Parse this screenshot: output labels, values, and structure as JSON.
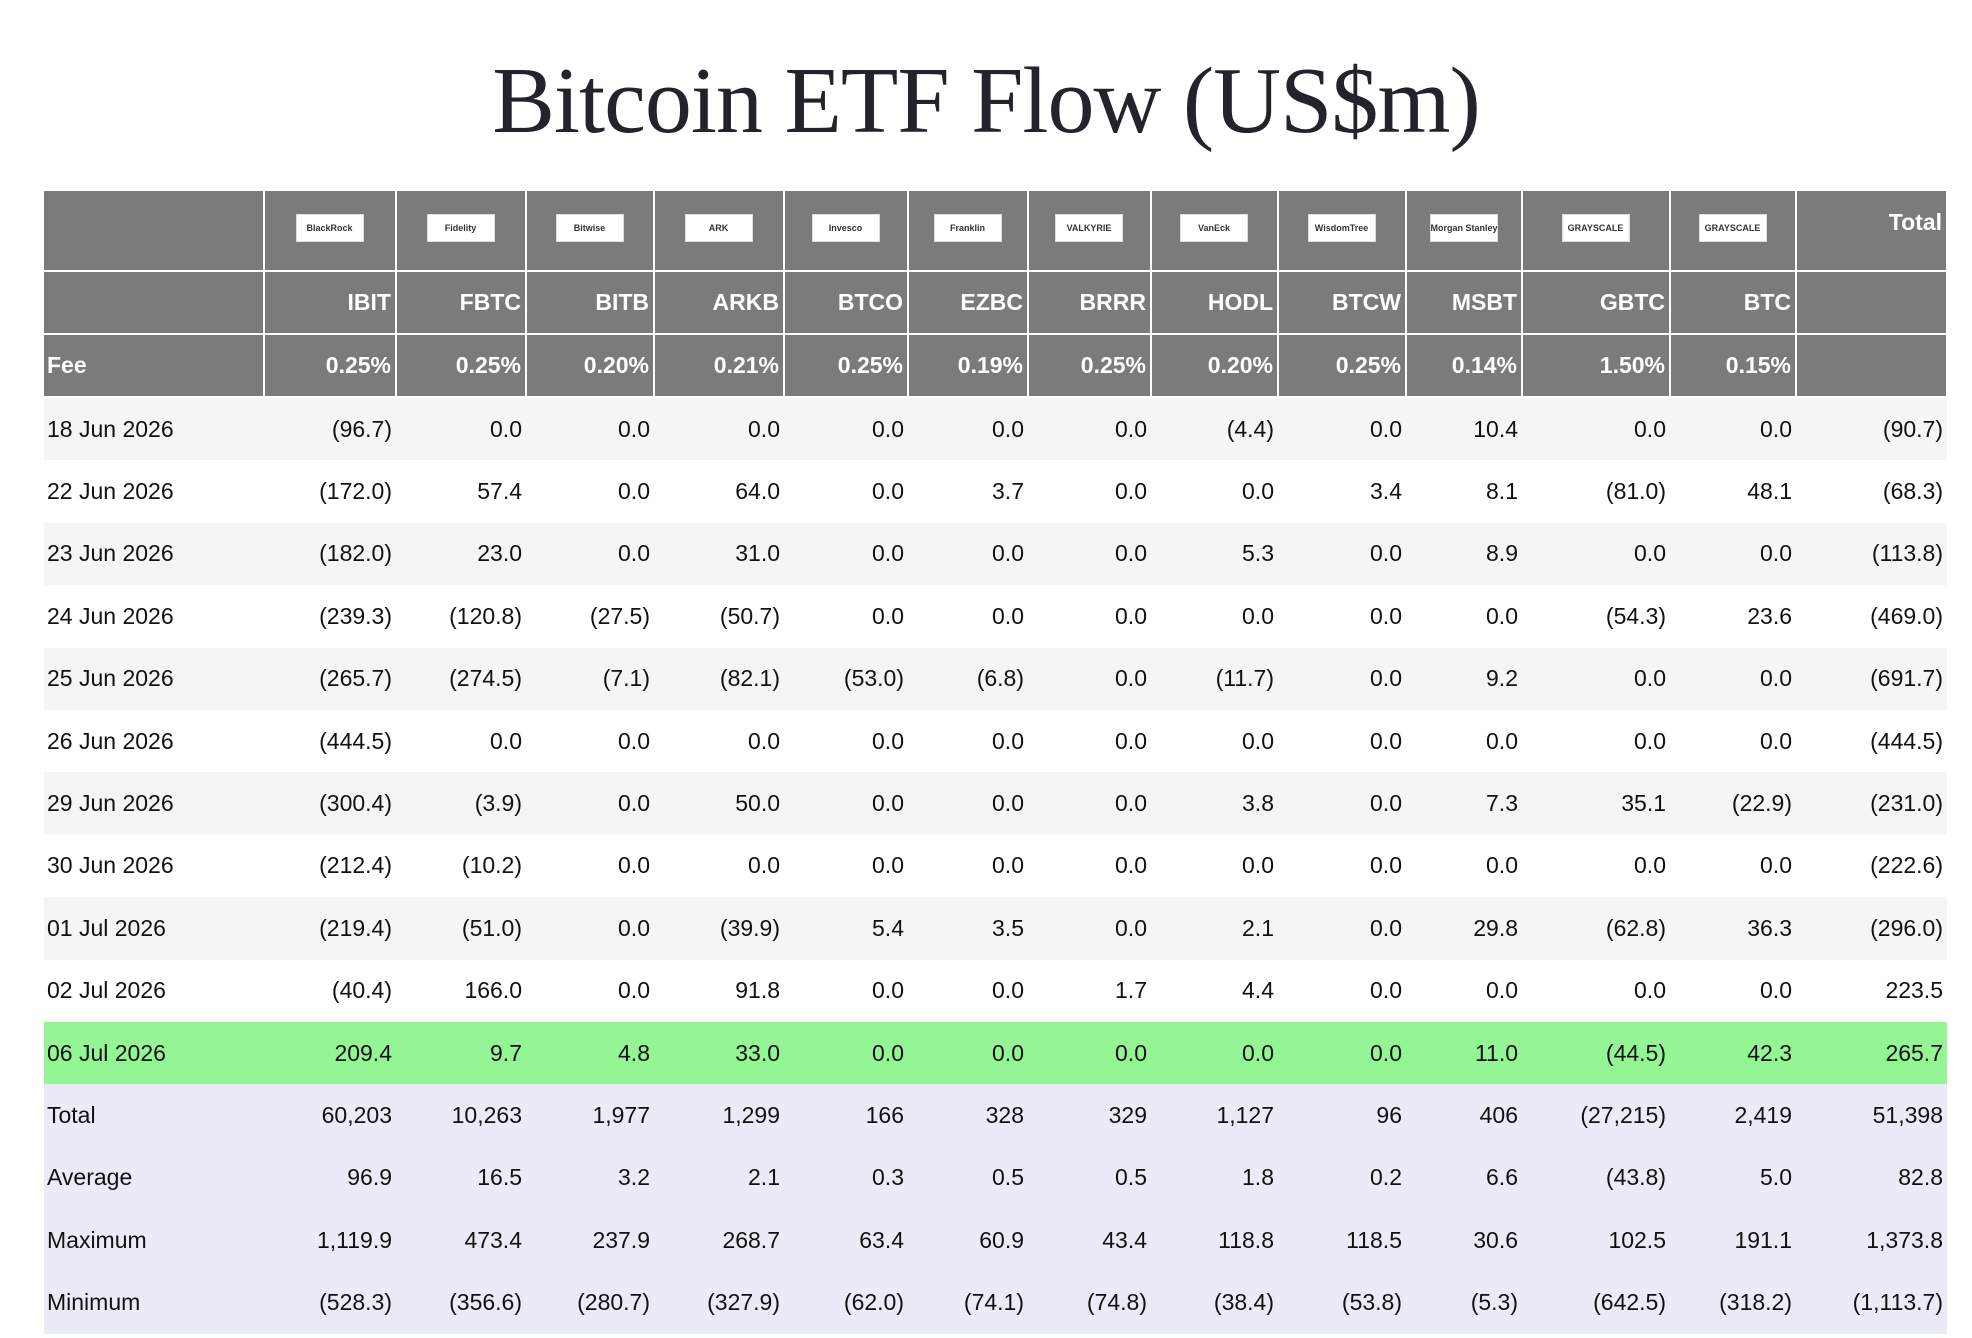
{
  "title": "Bitcoin ETF Flow (US$m)",
  "table": {
    "logos": [
      "BlackRock",
      "Fidelity",
      "Bitwise",
      "ARK",
      "Invesco",
      "Franklin",
      "VALKYRIE",
      "VanEck",
      "WisdomTree",
      "Morgan Stanley",
      "GRAYSCALE",
      "GRAYSCALE"
    ],
    "total_header": "Total",
    "tickers": [
      "IBIT",
      "FBTC",
      "BITB",
      "ARKB",
      "BTCO",
      "EZBC",
      "BRRR",
      "HODL",
      "BTCW",
      "MSBT",
      "GBTC",
      "BTC"
    ],
    "fee_label": "Fee",
    "fees": [
      "0.25%",
      "0.25%",
      "0.20%",
      "0.21%",
      "0.25%",
      "0.19%",
      "0.25%",
      "0.20%",
      "0.25%",
      "0.14%",
      "1.50%",
      "0.15%"
    ],
    "rows": [
      {
        "date": "18 Jun 2026",
        "cells": [
          "(96.7)",
          "0.0",
          "0.0",
          "0.0",
          "0.0",
          "0.0",
          "0.0",
          "(4.4)",
          "0.0",
          "10.4",
          "0.0",
          "0.0",
          "(90.7)"
        ]
      },
      {
        "date": "22 Jun 2026",
        "cells": [
          "(172.0)",
          "57.4",
          "0.0",
          "64.0",
          "0.0",
          "3.7",
          "0.0",
          "0.0",
          "3.4",
          "8.1",
          "(81.0)",
          "48.1",
          "(68.3)"
        ]
      },
      {
        "date": "23 Jun 2026",
        "cells": [
          "(182.0)",
          "23.0",
          "0.0",
          "31.0",
          "0.0",
          "0.0",
          "0.0",
          "5.3",
          "0.0",
          "8.9",
          "0.0",
          "0.0",
          "(113.8)"
        ]
      },
      {
        "date": "24 Jun 2026",
        "cells": [
          "(239.3)",
          "(120.8)",
          "(27.5)",
          "(50.7)",
          "0.0",
          "0.0",
          "0.0",
          "0.0",
          "0.0",
          "0.0",
          "(54.3)",
          "23.6",
          "(469.0)"
        ]
      },
      {
        "date": "25 Jun 2026",
        "cells": [
          "(265.7)",
          "(274.5)",
          "(7.1)",
          "(82.1)",
          "(53.0)",
          "(6.8)",
          "0.0",
          "(11.7)",
          "0.0",
          "9.2",
          "0.0",
          "0.0",
          "(691.7)"
        ]
      },
      {
        "date": "26 Jun 2026",
        "cells": [
          "(444.5)",
          "0.0",
          "0.0",
          "0.0",
          "0.0",
          "0.0",
          "0.0",
          "0.0",
          "0.0",
          "0.0",
          "0.0",
          "0.0",
          "(444.5)"
        ]
      },
      {
        "date": "29 Jun 2026",
        "cells": [
          "(300.4)",
          "(3.9)",
          "0.0",
          "50.0",
          "0.0",
          "0.0",
          "0.0",
          "3.8",
          "0.0",
          "7.3",
          "35.1",
          "(22.9)",
          "(231.0)"
        ]
      },
      {
        "date": "30 Jun 2026",
        "cells": [
          "(212.4)",
          "(10.2)",
          "0.0",
          "0.0",
          "0.0",
          "0.0",
          "0.0",
          "0.0",
          "0.0",
          "0.0",
          "0.0",
          "0.0",
          "(222.6)"
        ]
      },
      {
        "date": "01 Jul 2026",
        "cells": [
          "(219.4)",
          "(51.0)",
          "0.0",
          "(39.9)",
          "5.4",
          "3.5",
          "0.0",
          "2.1",
          "0.0",
          "29.8",
          "(62.8)",
          "36.3",
          "(296.0)"
        ]
      },
      {
        "date": "02 Jul 2026",
        "cells": [
          "(40.4)",
          "166.0",
          "0.0",
          "91.8",
          "0.0",
          "0.0",
          "1.7",
          "4.4",
          "0.0",
          "0.0",
          "0.0",
          "0.0",
          "223.5"
        ]
      },
      {
        "date": "06 Jul 2026",
        "cells": [
          "209.4",
          "9.7",
          "4.8",
          "33.0",
          "0.0",
          "0.0",
          "0.0",
          "0.0",
          "0.0",
          "11.0",
          "(44.5)",
          "42.3",
          "265.7"
        ]
      }
    ],
    "summary": [
      {
        "label": "Total",
        "cells": [
          "60,203",
          "10,263",
          "1,977",
          "1,299",
          "166",
          "328",
          "329",
          "1,127",
          "96",
          "406",
          "(27,215)",
          "2,419",
          "51,398"
        ]
      },
      {
        "label": "Average",
        "cells": [
          "96.9",
          "16.5",
          "3.2",
          "2.1",
          "0.3",
          "0.5",
          "0.5",
          "1.8",
          "0.2",
          "6.6",
          "(43.8)",
          "5.0",
          "82.8"
        ]
      },
      {
        "label": "Maximum",
        "cells": [
          "1,119.9",
          "473.4",
          "237.9",
          "268.7",
          "63.4",
          "60.9",
          "43.4",
          "118.8",
          "118.5",
          "30.6",
          "102.5",
          "191.1",
          "1,373.8"
        ]
      },
      {
        "label": "Minimum",
        "cells": [
          "(528.3)",
          "(356.6)",
          "(280.7)",
          "(327.9)",
          "(62.0)",
          "(74.1)",
          "(74.8)",
          "(38.4)",
          "(53.8)",
          "(5.3)",
          "(642.5)",
          "(318.2)",
          "(1,113.7)"
        ]
      }
    ]
  }
}
